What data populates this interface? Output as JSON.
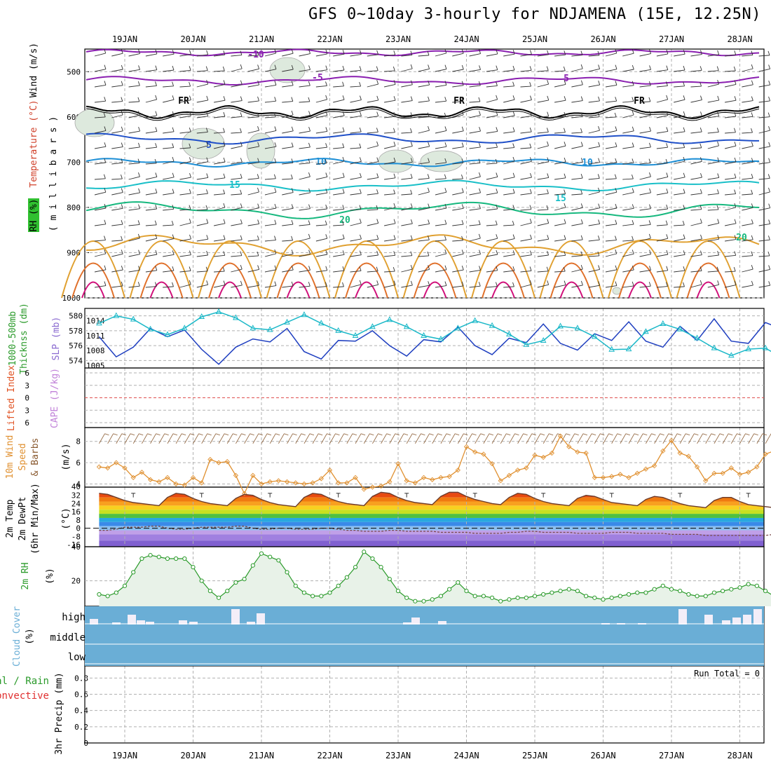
{
  "title": "GFS 0~10day 3-hourly for NDJAMENA (15E, 12.25N)",
  "dates": [
    "19JAN",
    "20JAN",
    "21JAN",
    "22JAN",
    "23JAN",
    "24JAN",
    "25JAN",
    "26JAN",
    "27JAN",
    "28JAN"
  ],
  "colors": {
    "purple": "#8a1fb0",
    "black": "#000000",
    "blue": "#1f4fc8",
    "lightblue": "#1d8fd6",
    "cyan": "#19bfc8",
    "green": "#16b87e",
    "orange": "#e0a030",
    "darkorange": "#e0702a",
    "magenta": "#d0107a",
    "thick": "#1f3fc0",
    "slp": "#1ab8c8",
    "wind10": "#e09030",
    "rh": "#2a9a2a",
    "cloud": "#6aaed6",
    "grid": "#b0b0b0"
  },
  "panels": {
    "upper": {
      "ylabel_wind": "Wind (m/s)",
      "ylabel_temp": "Temperature (°C)",
      "ylabel_rh": "RH (%)",
      "ylabel_p": "( m i l l i b a r s )",
      "yticks": [
        "500",
        "600",
        "700",
        "800",
        "900",
        "1000"
      ],
      "contour_labels": [
        {
          "text": "-10",
          "color": "purple"
        },
        {
          "text": "-5",
          "color": "purple"
        },
        {
          "text": "5",
          "color": "purple"
        },
        {
          "text": "FR",
          "color": "black"
        },
        {
          "text": "FR",
          "color": "black"
        },
        {
          "text": "FR",
          "color": "black"
        },
        {
          "text": "5",
          "color": "blue"
        },
        {
          "text": "10",
          "color": "lightblue"
        },
        {
          "text": "10",
          "color": "lightblue"
        },
        {
          "text": "15",
          "color": "cyan"
        },
        {
          "text": "15",
          "color": "cyan"
        },
        {
          "text": "20",
          "color": "green"
        },
        {
          "text": "20",
          "color": "green"
        }
      ]
    },
    "thickness": {
      "ylabel_left": "1000-500mb",
      "ylabel_left2": "Thicknss (dm)",
      "ylabel_right": "SLP (mb)",
      "yticks_left": [
        "580",
        "578",
        "576",
        "574"
      ],
      "yticks_right": [
        "1014",
        "1011",
        "1008",
        "1005"
      ]
    },
    "li": {
      "ylabel_left": "Lifted Index",
      "ylabel_right": "CAPE (J/kg)",
      "yticks": [
        "6",
        "3",
        "0",
        "3",
        "6"
      ]
    },
    "wind10": {
      "ylabel_a": "10m Wind",
      "ylabel_b": "Speed",
      "ylabel_c": "& Barbs",
      "units": "(m/s)",
      "yticks": [
        "8",
        "6",
        "4"
      ]
    },
    "temp2m": {
      "ylabel_a": "2m Temp",
      "ylabel_b": "2m DewPt",
      "ylabel_c": "(6hr Min/Max)",
      "units": "(°C)",
      "yticks": [
        "40",
        "32",
        "24",
        "16",
        "8",
        "0",
        "-8",
        "-16"
      ]
    },
    "rh2m": {
      "ylabel": "2m RH",
      "units": "(%)",
      "yticks": [
        "40",
        "20"
      ]
    },
    "cloud": {
      "ylabel": "Cloud Cover",
      "units": "(%)",
      "levels": [
        "high",
        "middle",
        "low"
      ]
    },
    "precip": {
      "ylabel_a": "tal / Rain",
      "ylabel_b": "Convective",
      "ylabel_c": "3hr Precip (mm)",
      "yticks": [
        "0.8",
        "0.6",
        "0.4",
        "0.2",
        "0"
      ],
      "run_total": "Run Total = 0"
    }
  },
  "chart_data": [
    {
      "type": "line",
      "title": "",
      "ylabel": "1000-500mb Thicknss (dm) / SLP (mb)",
      "x_start": "18JAN 15Z",
      "x_step_hours": 6,
      "series": [
        {
          "name": "1000-500mb Thicknss (dm)",
          "values": [
            577.2,
            574.5,
            575.8,
            578.3,
            577.2,
            578.1,
            575.5,
            573.5,
            575.8,
            576.9,
            576.5,
            578.3,
            575.2,
            574.2,
            576.7,
            576.6,
            578.0,
            576.0,
            574.6,
            576.8,
            576.5,
            578.5,
            576.0,
            574.8,
            577.0,
            576.4,
            578.9,
            576.3,
            575.4,
            577.6,
            576.7,
            579.2,
            576.6,
            575.8,
            578.6,
            576.7,
            579.6,
            576.6,
            576.3,
            579.1,
            578.2,
            579.6
          ]
        },
        {
          "name": "SLP (mb)",
          "values": [
            1013.5,
            1015.0,
            1014.3,
            1012.3,
            1011.2,
            1012.5,
            1014.8,
            1015.8,
            1014.6,
            1012.5,
            1012.2,
            1013.7,
            1015.2,
            1013.5,
            1012.0,
            1011.0,
            1012.8,
            1014.2,
            1012.8,
            1011.0,
            1010.3,
            1012.5,
            1014.0,
            1013.0,
            1011.3,
            1009.2,
            1010.0,
            1012.9,
            1012.5,
            1010.8,
            1008.2,
            1008.3,
            1011.8,
            1013.4,
            1012.3,
            1010.5,
            1008.5,
            1007.0,
            1008.3,
            1008.5,
            1006.5,
            1004.7
          ]
        }
      ]
    },
    {
      "type": "line",
      "title": "",
      "ylabel": "10m Wind Speed (m/s)",
      "x_start": "18JAN 15Z",
      "x_step_hours": 3,
      "series": [
        {
          "name": "10m Wind Speed",
          "values": [
            5.6,
            5.5,
            6.0,
            5.5,
            4.6,
            5.1,
            4.4,
            4.2,
            4.6,
            4.0,
            3.9,
            4.6,
            4.1,
            6.3,
            6.0,
            6.1,
            4.8,
            3.1,
            4.8,
            4.0,
            4.2,
            4.3,
            4.2,
            4.1,
            4.0,
            4.1,
            4.5,
            5.3,
            4.1,
            4.1,
            4.6,
            3.5,
            3.7,
            3.8,
            4.2,
            5.9,
            4.3,
            4.1,
            4.6,
            4.4,
            4.6,
            4.7,
            5.3,
            7.5,
            7.0,
            6.8,
            5.9,
            4.3,
            4.8,
            5.3,
            5.5,
            6.7,
            6.5,
            6.9,
            8.5,
            7.5,
            7.0,
            6.9,
            4.6,
            4.6,
            4.7,
            4.9,
            4.6,
            5.0,
            5.4,
            5.7,
            7.1,
            8.1,
            6.9,
            6.6,
            5.6,
            4.3,
            5.0,
            5.0,
            5.5,
            4.9,
            5.1,
            5.6,
            6.8,
            7.1,
            6.4,
            6.2,
            5.2,
            4.5,
            4.6,
            4.5,
            5.0,
            4.6,
            4.7,
            4.6,
            5.2,
            6.4,
            6.1,
            6.2,
            5.0,
            4.6,
            5.1,
            5.3,
            4.8,
            4.5,
            4.5,
            4.4,
            5.4,
            6.3,
            5.5,
            5.2,
            5.4,
            5.8,
            7.3,
            7.2,
            6.6,
            6.3,
            5.8,
            5.5,
            4.7
          ]
        }
      ]
    },
    {
      "type": "area",
      "title": "",
      "ylabel": "2m Temp (°C)",
      "x_start": "18JAN 15Z",
      "x_step_hours": 3,
      "series": [
        {
          "name": "2m Temp",
          "values": [
            34,
            33,
            30,
            27,
            25,
            24,
            23,
            22,
            30,
            34,
            33,
            29,
            26,
            24,
            23,
            22,
            29,
            33,
            32,
            28,
            25,
            23,
            22,
            21,
            30,
            34,
            33,
            29,
            26,
            24,
            23,
            22,
            31,
            35,
            34,
            30,
            27,
            25,
            24,
            23,
            31,
            35,
            35,
            31,
            28,
            26,
            24,
            23,
            30,
            34,
            33,
            29,
            26,
            24,
            23,
            22,
            29,
            32,
            31,
            28,
            25,
            24,
            23,
            22,
            28,
            31,
            30,
            27,
            24,
            22,
            21,
            20,
            27,
            30,
            30,
            26,
            23,
            22,
            21,
            20,
            28,
            31,
            31,
            28,
            25,
            22,
            20,
            19,
            17
          ]
        },
        {
          "name": "2m DewPt",
          "values": [
            -2,
            -2,
            -1,
            1,
            1,
            1,
            2,
            2,
            0,
            -1,
            -1,
            0,
            1,
            1,
            1,
            1,
            2,
            2,
            0,
            -1,
            -1,
            0,
            0,
            -1,
            -1,
            -1,
            0,
            0,
            -1,
            -2,
            -2,
            -3,
            -3,
            -3,
            -2,
            -2,
            -3,
            -3,
            -3,
            -3,
            -4,
            -4,
            -4,
            -4,
            -5,
            -5,
            -5,
            -5,
            -4,
            -4,
            -3,
            -3,
            -4,
            -4,
            -4,
            -4,
            -5,
            -5,
            -5,
            -5,
            -4,
            -4,
            -4,
            -5,
            -5,
            -5,
            -5,
            -6,
            -6,
            -6,
            -6,
            -7,
            -7,
            -7,
            -7,
            -7,
            -7,
            -7,
            -7,
            -6,
            -6,
            -6,
            -5,
            -5,
            -5,
            -5,
            -4,
            -4,
            -4
          ]
        }
      ]
    },
    {
      "type": "area",
      "title": "",
      "ylabel": "2m RH (%)",
      "x_start": "18JAN 15Z",
      "x_step_hours": 3,
      "series": [
        {
          "name": "2m RH",
          "values": [
            12,
            11,
            13,
            17,
            25,
            33,
            35,
            34,
            33,
            33,
            33,
            28,
            20,
            14,
            10,
            14,
            19,
            21,
            29,
            36,
            34,
            32,
            25,
            17,
            13,
            11,
            11,
            13,
            17,
            22,
            28,
            37,
            33,
            28,
            21,
            14,
            10,
            8,
            8,
            9,
            11,
            15,
            19,
            14,
            11,
            11,
            10,
            8,
            9,
            10,
            10,
            11,
            12,
            13,
            14,
            15,
            14,
            11,
            10,
            9,
            10,
            11,
            12,
            13,
            13,
            15,
            17,
            15,
            14,
            12,
            11,
            11,
            13,
            14,
            15,
            16,
            18,
            17,
            14,
            11,
            10,
            10,
            11,
            12,
            14,
            15,
            15,
            16,
            17,
            15,
            12,
            10,
            9,
            8,
            10,
            11,
            12,
            13,
            14,
            15,
            16,
            13,
            10,
            9,
            9,
            11,
            12,
            14,
            17,
            19,
            23
          ]
        }
      ]
    },
    {
      "type": "bar",
      "title": "",
      "ylabel": "3hr Precip (mm)",
      "ylim": [
        0,
        0.8
      ],
      "run_total": "Run Total = 0",
      "values": []
    }
  ]
}
